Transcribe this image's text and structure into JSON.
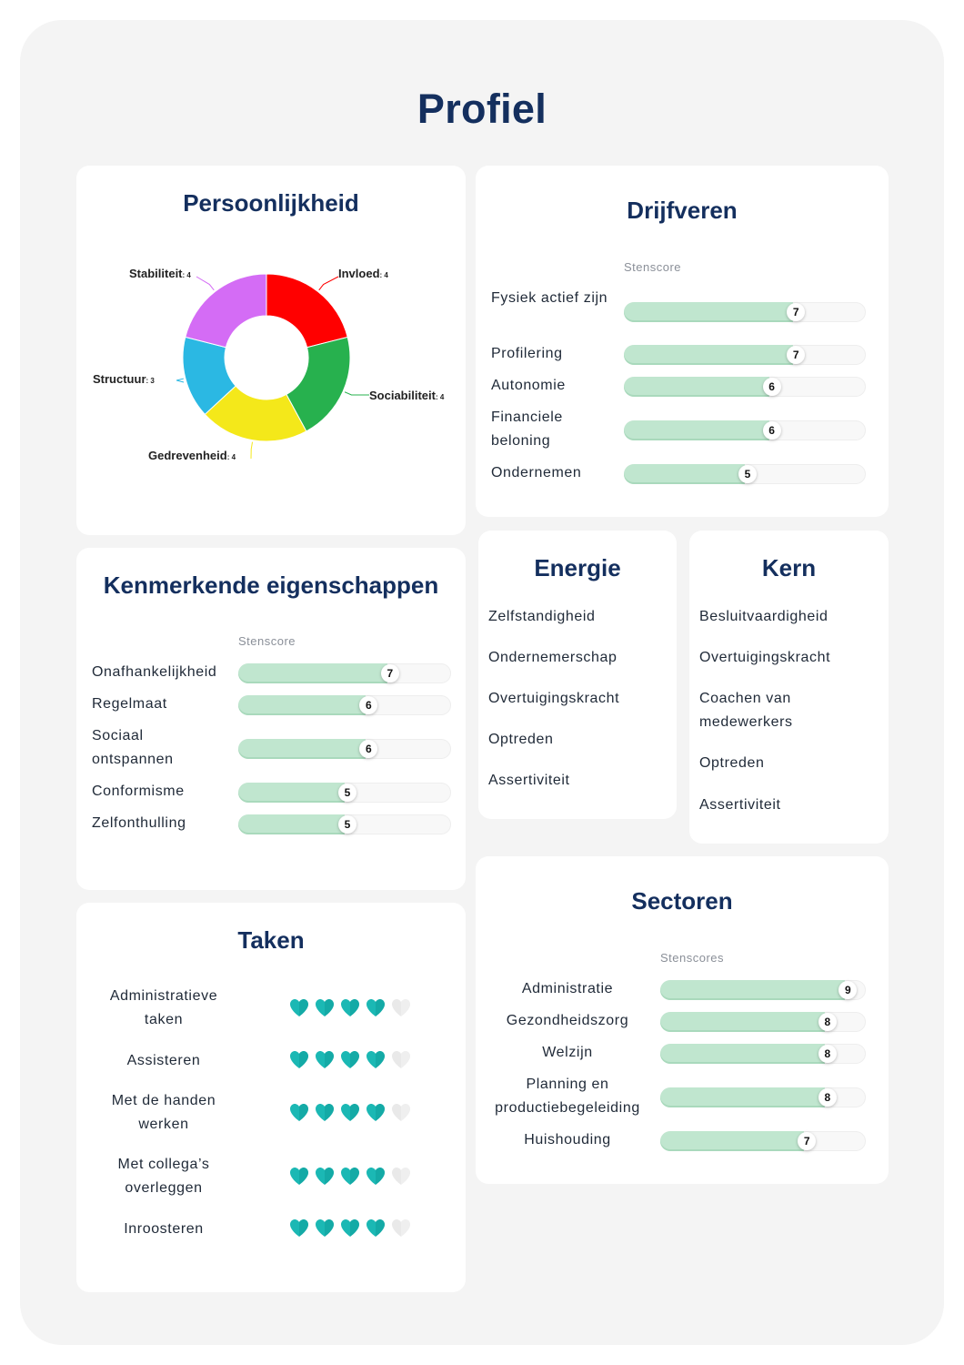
{
  "page": {
    "title": "Profiel"
  },
  "persoonlijkheid": {
    "title": "Persoonlijkheid",
    "chart_data": {
      "type": "pie",
      "title": "Persoonlijkheid",
      "categories": [
        "Invloed",
        "Sociabiliteit",
        "Gedrevenheid",
        "Structuur",
        "Stabiliteit"
      ],
      "values": [
        4,
        4,
        4,
        3,
        4
      ],
      "colors": [
        "#ff0000",
        "#27b14e",
        "#f4e81a",
        "#2bb8e3",
        "#d46cf5"
      ],
      "donut": true
    },
    "labels": [
      {
        "name": "Invloed",
        "value": ": 4"
      },
      {
        "name": "Sociabiliteit",
        "value": ": 4"
      },
      {
        "name": "Gedrevenheid",
        "value": ": 4"
      },
      {
        "name": "Structuur",
        "value": ": 3"
      },
      {
        "name": "Stabiliteit",
        "value": ": 4"
      }
    ]
  },
  "drijfveren": {
    "title": "Drijfveren",
    "score_header": "Stenscore",
    "max": 10,
    "items": [
      {
        "label": "Fysiek actief zijn",
        "value": 7
      },
      {
        "label": "Profilering",
        "value": 7
      },
      {
        "label": "Autonomie",
        "value": 6
      },
      {
        "label": "Financiele beloning",
        "value": 6
      },
      {
        "label": "Ondernemen",
        "value": 5
      }
    ]
  },
  "kenmerkende": {
    "title": "Kenmerkende eigenschappen",
    "score_header": "Stenscore",
    "max": 10,
    "items": [
      {
        "label": "Onafhankelijkheid",
        "value": 7
      },
      {
        "label": "Regelmaat",
        "value": 6
      },
      {
        "label": "Sociaal ontspannen",
        "value": 6
      },
      {
        "label": "Conformisme",
        "value": 5
      },
      {
        "label": "Zelfonthulling",
        "value": 5
      }
    ]
  },
  "energie": {
    "title": "Energie",
    "items": [
      "Zelfstandigheid",
      "Ondernemerschap",
      "Overtuigingskracht",
      "Optreden",
      "Assertiviteit"
    ]
  },
  "kern": {
    "title": "Kern",
    "items": [
      "Besluitvaardigheid",
      "Overtuigingskracht",
      "Coachen van medewerkers",
      "Optreden",
      "Assertiviteit"
    ]
  },
  "taken": {
    "title": "Taken",
    "max": 5,
    "items": [
      {
        "label": "Administratieve taken",
        "rating": 4
      },
      {
        "label": "Assisteren",
        "rating": 4
      },
      {
        "label": "Met de handen werken",
        "rating": 4
      },
      {
        "label": "Met collega’s overleggen",
        "rating": 4
      },
      {
        "label": "Inroosteren",
        "rating": 4
      }
    ],
    "colors": {
      "filled": "#1bb8b4",
      "empty": "#e9e9e9"
    }
  },
  "sectoren": {
    "title": "Sectoren",
    "score_header": "Stenscores",
    "max": 10,
    "items": [
      {
        "label": "Administratie",
        "value": 9
      },
      {
        "label": "Gezondheidszorg",
        "value": 8
      },
      {
        "label": "Welzijn",
        "value": 8
      },
      {
        "label": "Planning en productiebegeleiding",
        "value": 8
      },
      {
        "label": "Huishouding",
        "value": 7
      }
    ]
  }
}
